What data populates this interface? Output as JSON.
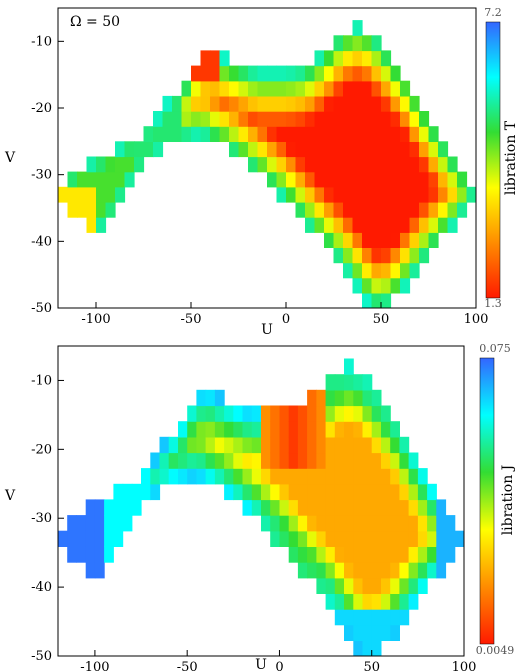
{
  "chart_data": [
    {
      "type": "heatmap",
      "title": "",
      "annotation": "Ω = 50",
      "xlabel": "U",
      "ylabel": "V",
      "xlim": [
        -120,
        100
      ],
      "ylim": [
        -50,
        -5
      ],
      "x_ticks": [
        -100,
        -50,
        0,
        50,
        100
      ],
      "y_ticks": [
        -10,
        -20,
        -30,
        -40,
        -50
      ],
      "colorbar": {
        "label": "libration T",
        "min": 1.3,
        "max": 7.2,
        "min_label": "1.3",
        "max_label": "7.2",
        "colormap": [
          "#ff1a00",
          "#ff8c00",
          "#ffff00",
          "#33dd33",
          "#00ffff",
          "#3366ff"
        ]
      }
    },
    {
      "type": "heatmap",
      "title": "",
      "xlabel": "U",
      "ylabel": "V",
      "xlim": [
        -120,
        100
      ],
      "ylim": [
        -50,
        -5
      ],
      "x_ticks": [
        -100,
        -50,
        0,
        50,
        100
      ],
      "y_ticks": [
        -10,
        -20,
        -30,
        -40,
        -50
      ],
      "colorbar": {
        "label": "libration J",
        "min": 0.0049,
        "max": 0.075,
        "min_label": "0.0049",
        "max_label": "0.075",
        "colormap": [
          "#ff1a00",
          "#ff8c00",
          "#ffff00",
          "#33dd33",
          "#00ffff",
          "#3366ff"
        ]
      }
    }
  ]
}
